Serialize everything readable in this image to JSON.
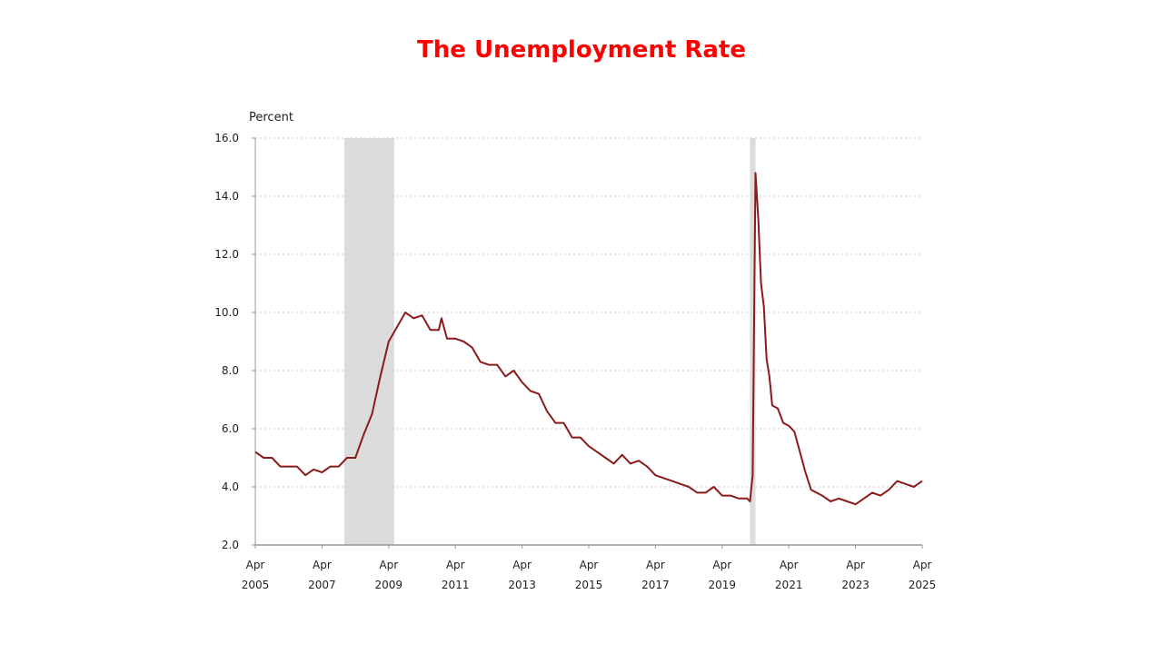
{
  "title": "The Unemployment Rate",
  "chart_data": {
    "type": "line",
    "title": "The Unemployment Rate",
    "ylabel": "Percent",
    "xlabel": "",
    "ylim": [
      2.0,
      16.0
    ],
    "xlim": [
      "2005-04",
      "2025-04"
    ],
    "grid": true,
    "grid_style": "dotted horizontal",
    "line_color": "#8b1a1a",
    "recession_color": "#dcdcdc",
    "title_color": "#ff0000",
    "y_ticks": [
      "2.0",
      "4.0",
      "6.0",
      "8.0",
      "10.0",
      "12.0",
      "14.0",
      "16.0"
    ],
    "x_ticks": [
      {
        "month": "Apr",
        "year": "2005",
        "date": "2005-04"
      },
      {
        "month": "Apr",
        "year": "2007",
        "date": "2007-04"
      },
      {
        "month": "Apr",
        "year": "2009",
        "date": "2009-04"
      },
      {
        "month": "Apr",
        "year": "2011",
        "date": "2011-04"
      },
      {
        "month": "Apr",
        "year": "2013",
        "date": "2013-04"
      },
      {
        "month": "Apr",
        "year": "2015",
        "date": "2015-04"
      },
      {
        "month": "Apr",
        "year": "2017",
        "date": "2017-04"
      },
      {
        "month": "Apr",
        "year": "2019",
        "date": "2019-04"
      },
      {
        "month": "Apr",
        "year": "2021",
        "date": "2021-04"
      },
      {
        "month": "Apr",
        "year": "2023",
        "date": "2023-04"
      },
      {
        "month": "Apr",
        "year": "2025",
        "date": "2025-04"
      }
    ],
    "recessions": [
      {
        "start": "2007-12",
        "end": "2009-06"
      },
      {
        "start": "2020-02",
        "end": "2020-04"
      }
    ],
    "series": [
      {
        "points": [
          [
            "2005-04",
            5.2
          ],
          [
            "2005-07",
            5.0
          ],
          [
            "2005-10",
            5.0
          ],
          [
            "2006-01",
            4.7
          ],
          [
            "2006-04",
            4.7
          ],
          [
            "2006-07",
            4.7
          ],
          [
            "2006-10",
            4.4
          ],
          [
            "2007-01",
            4.6
          ],
          [
            "2007-04",
            4.5
          ],
          [
            "2007-07",
            4.7
          ],
          [
            "2007-10",
            4.7
          ],
          [
            "2008-01",
            5.0
          ],
          [
            "2008-04",
            5.0
          ],
          [
            "2008-07",
            5.8
          ],
          [
            "2008-10",
            6.5
          ],
          [
            "2009-01",
            7.8
          ],
          [
            "2009-04",
            9.0
          ],
          [
            "2009-07",
            9.5
          ],
          [
            "2009-10",
            10.0
          ],
          [
            "2010-01",
            9.8
          ],
          [
            "2010-04",
            9.9
          ],
          [
            "2010-07",
            9.4
          ],
          [
            "2010-10",
            9.4
          ],
          [
            "2010-11",
            9.8
          ],
          [
            "2011-01",
            9.1
          ],
          [
            "2011-04",
            9.1
          ],
          [
            "2011-07",
            9.0
          ],
          [
            "2011-10",
            8.8
          ],
          [
            "2012-01",
            8.3
          ],
          [
            "2012-04",
            8.2
          ],
          [
            "2012-07",
            8.2
          ],
          [
            "2012-10",
            7.8
          ],
          [
            "2013-01",
            8.0
          ],
          [
            "2013-04",
            7.6
          ],
          [
            "2013-07",
            7.3
          ],
          [
            "2013-10",
            7.2
          ],
          [
            "2014-01",
            6.6
          ],
          [
            "2014-04",
            6.2
          ],
          [
            "2014-07",
            6.2
          ],
          [
            "2014-10",
            5.7
          ],
          [
            "2015-01",
            5.7
          ],
          [
            "2015-04",
            5.4
          ],
          [
            "2015-07",
            5.2
          ],
          [
            "2015-10",
            5.0
          ],
          [
            "2016-01",
            4.8
          ],
          [
            "2016-04",
            5.1
          ],
          [
            "2016-07",
            4.8
          ],
          [
            "2016-10",
            4.9
          ],
          [
            "2017-01",
            4.7
          ],
          [
            "2017-04",
            4.4
          ],
          [
            "2017-07",
            4.3
          ],
          [
            "2017-10",
            4.2
          ],
          [
            "2018-01",
            4.1
          ],
          [
            "2018-04",
            4.0
          ],
          [
            "2018-07",
            3.8
          ],
          [
            "2018-10",
            3.8
          ],
          [
            "2019-01",
            4.0
          ],
          [
            "2019-04",
            3.7
          ],
          [
            "2019-07",
            3.7
          ],
          [
            "2019-10",
            3.6
          ],
          [
            "2020-01",
            3.6
          ],
          [
            "2020-02",
            3.5
          ],
          [
            "2020-03",
            4.4
          ],
          [
            "2020-04",
            14.8
          ],
          [
            "2020-05",
            13.2
          ],
          [
            "2020-06",
            11.0
          ],
          [
            "2020-07",
            10.2
          ],
          [
            "2020-08",
            8.4
          ],
          [
            "2020-09",
            7.8
          ],
          [
            "2020-10",
            6.8
          ],
          [
            "2020-12",
            6.7
          ],
          [
            "2021-02",
            6.2
          ],
          [
            "2021-04",
            6.1
          ],
          [
            "2021-06",
            5.9
          ],
          [
            "2021-08",
            5.2
          ],
          [
            "2021-10",
            4.5
          ],
          [
            "2021-12",
            3.9
          ],
          [
            "2022-02",
            3.8
          ],
          [
            "2022-04",
            3.7
          ],
          [
            "2022-07",
            3.5
          ],
          [
            "2022-10",
            3.6
          ],
          [
            "2023-01",
            3.5
          ],
          [
            "2023-04",
            3.4
          ],
          [
            "2023-07",
            3.6
          ],
          [
            "2023-10",
            3.8
          ],
          [
            "2024-01",
            3.7
          ],
          [
            "2024-04",
            3.9
          ],
          [
            "2024-07",
            4.2
          ],
          [
            "2024-10",
            4.1
          ],
          [
            "2025-01",
            4.0
          ],
          [
            "2025-04",
            4.2
          ]
        ]
      }
    ]
  }
}
